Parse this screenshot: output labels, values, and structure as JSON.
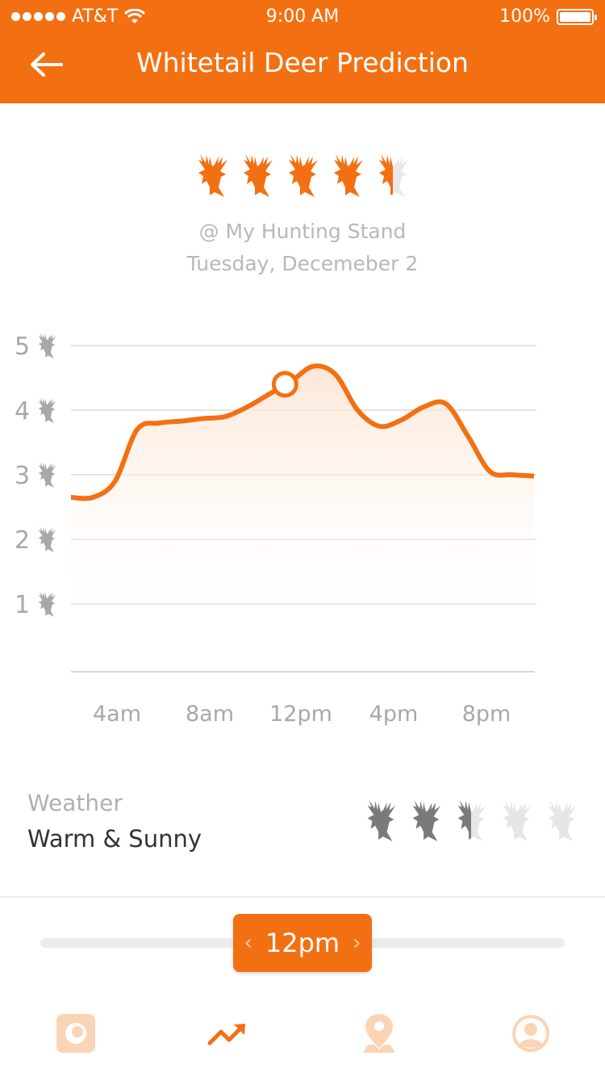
{
  "status_bar": {
    "carrier": "AT&T",
    "time": "9:00 AM",
    "battery": "100%"
  },
  "header": {
    "title": "Whitetail Deer Prediction",
    "back_icon": "arrow-left-icon"
  },
  "prediction": {
    "rating": 4.5,
    "rating_max": 5,
    "location": "@ My Hunting Stand",
    "date": "Tuesday, Decemeber 2",
    "icon": "deer-head-icon",
    "color": "#F37012"
  },
  "chart_data": {
    "type": "area",
    "title": "",
    "xlabel": "",
    "ylabel": "",
    "x_tick_labels": [
      "4am",
      "8am",
      "12pm",
      "4pm",
      "8pm"
    ],
    "y_tick_labels": [
      "5",
      "4",
      "3",
      "2",
      "1"
    ],
    "ylim": [
      0,
      5
    ],
    "grid": true,
    "series": [
      {
        "x": [
          2,
          3,
          4,
          5,
          6,
          7,
          8,
          9,
          10,
          11,
          12,
          13,
          14,
          15,
          16,
          17,
          18,
          19,
          20,
          21,
          22,
          23
        ],
        "values": [
          2.65,
          2.65,
          2.9,
          3.7,
          3.8,
          3.83,
          3.87,
          3.9,
          4.05,
          4.25,
          4.45,
          4.68,
          4.55,
          4.0,
          3.75,
          3.85,
          4.05,
          4.1,
          3.6,
          3.05,
          3.0,
          2.98
        ]
      }
    ],
    "selected": {
      "x": 12,
      "y": 4.5
    }
  },
  "weather": {
    "label": "Weather",
    "value": "Warm & Sunny",
    "rating": 2.5,
    "rating_max": 5,
    "active_color": "#7a7a7a",
    "inactive_color": "#e6e6e6"
  },
  "slider": {
    "value": "12pm",
    "prev_icon": "chevron-left-icon",
    "next_icon": "chevron-right-icon"
  },
  "tabbar": {
    "items": [
      {
        "icon": "camera-icon",
        "active": false
      },
      {
        "icon": "trending-up-icon",
        "active": true
      },
      {
        "icon": "map-pin-icon",
        "active": false
      },
      {
        "icon": "profile-icon",
        "active": false
      }
    ]
  }
}
